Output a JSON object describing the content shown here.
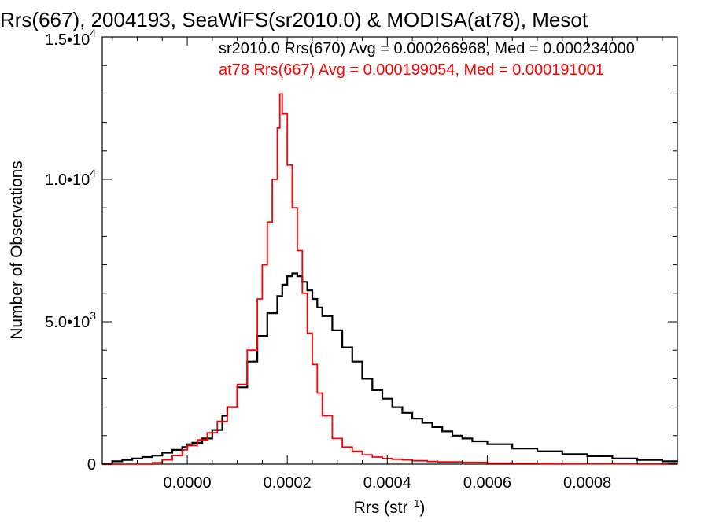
{
  "chart_data": {
    "type": "line",
    "subtype": "step-histogram",
    "title": "Rrs(667), 2004193, SeaWiFS(sr2010.0) & MODISA(at78), Mesot",
    "xlabel_base": "Rrs (str",
    "xlabel_sup": "−1",
    "xlabel_close": ")",
    "ylabel": "Number of Observations",
    "xlim": [
      -0.00017,
      0.00098
    ],
    "ylim": [
      0,
      15000
    ],
    "grid": false,
    "x_ticks": [
      {
        "value": 0.0,
        "label": "0.0000"
      },
      {
        "value": 0.0002,
        "label": "0.0002"
      },
      {
        "value": 0.0004,
        "label": "0.0004"
      },
      {
        "value": 0.0006,
        "label": "0.0006"
      },
      {
        "value": 0.0008,
        "label": "0.0008"
      }
    ],
    "y_ticks": [
      {
        "value": 0,
        "mant": "0",
        "exp": ""
      },
      {
        "value": 5000,
        "mant": "5.0•10",
        "exp": "3"
      },
      {
        "value": 10000,
        "mant": "1.0•10",
        "exp": "4"
      },
      {
        "value": 15000,
        "mant": "1.5•10",
        "exp": "4"
      }
    ],
    "annotations": [
      {
        "text": "sr2010.0 Rrs(670) Avg = 0.000266968, Med = 0.000234000",
        "color": "#000000"
      },
      {
        "text": "at78 Rrs(667) Avg = 0.000199054, Med = 0.000191001",
        "color": "#ff0000"
      }
    ],
    "series": [
      {
        "color": "#000000",
        "x": [
          -0.00017,
          -0.00015,
          -0.00013,
          -0.00011,
          -9e-05,
          -7e-05,
          -5e-05,
          -3e-05,
          -1e-05,
          0.0,
          1e-05,
          3e-05,
          5e-05,
          7e-05,
          8e-05,
          0.0001,
          0.00012,
          0.00014,
          0.00016,
          0.00018,
          0.00019,
          0.0002,
          0.00021,
          0.00022,
          0.00023,
          0.00024,
          0.00025,
          0.00026,
          0.00027,
          0.00029,
          0.00031,
          0.00033,
          0.00035,
          0.00037,
          0.00039,
          0.00041,
          0.00043,
          0.00045,
          0.00047,
          0.00049,
          0.00051,
          0.00053,
          0.00055,
          0.00057,
          0.0006,
          0.00065,
          0.0007,
          0.00075,
          0.0008,
          0.00085,
          0.0009,
          0.00095,
          0.00098
        ],
        "y": [
          0,
          100,
          150,
          200,
          250,
          300,
          400,
          500,
          600,
          700,
          750,
          900,
          1200,
          1700,
          2000,
          2700,
          3600,
          4500,
          5300,
          5900,
          6300,
          6600,
          6700,
          6600,
          6400,
          6100,
          5800,
          5500,
          5200,
          4700,
          4100,
          3600,
          3000,
          2600,
          2300,
          2000,
          1800,
          1600,
          1450,
          1300,
          1150,
          1000,
          900,
          800,
          700,
          550,
          450,
          350,
          280,
          200,
          150,
          100,
          80
        ]
      },
      {
        "color": "#ff0000",
        "x": [
          -0.00017,
          -0.0001,
          -7e-05,
          -5e-05,
          -3e-05,
          -1e-05,
          0.0,
          2e-05,
          4e-05,
          6e-05,
          8e-05,
          0.0001,
          0.00012,
          0.00014,
          0.00015,
          0.00016,
          0.00017,
          0.00018,
          0.000185,
          0.00019,
          0.0002,
          0.00021,
          0.00022,
          0.00023,
          0.00024,
          0.00025,
          0.00026,
          0.00027,
          0.00029,
          0.00031,
          0.00033,
          0.00035,
          0.00037,
          0.00039,
          0.00041,
          0.00043,
          0.00045,
          0.00048,
          0.0005,
          0.00055,
          0.0006,
          0.00065,
          0.0007,
          0.00075,
          0.0008,
          0.0009,
          0.00098
        ],
        "y": [
          0,
          0,
          50,
          150,
          300,
          500,
          650,
          850,
          1100,
          1500,
          2000,
          2800,
          4000,
          5800,
          7000,
          8500,
          10000,
          11800,
          13000,
          12300,
          10500,
          9000,
          7500,
          6000,
          4600,
          3500,
          2500,
          1700,
          900,
          600,
          450,
          330,
          250,
          200,
          170,
          150,
          120,
          90,
          80,
          60,
          40,
          30,
          20,
          15,
          10,
          5,
          0
        ]
      }
    ]
  }
}
